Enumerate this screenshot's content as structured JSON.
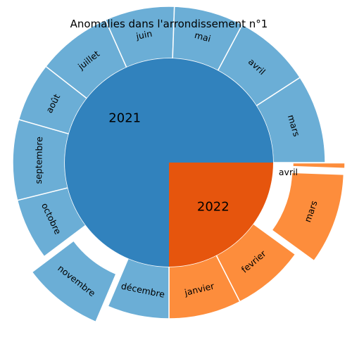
{
  "chart_data": {
    "type": "sunburst",
    "title": "Anomalies dans l'arrondissement n°1",
    "start_angle_deg": 0,
    "direction": "clockwise",
    "inner": [
      {
        "name": "2022",
        "value": 9,
        "color": "#e6550d"
      },
      {
        "name": "2021",
        "value": 27,
        "color": "#3182bd"
      }
    ],
    "outer": [
      {
        "name": "avril",
        "year": "2022",
        "value": 0.2,
        "exploded": true,
        "color": "#fd8d3c"
      },
      {
        "name": "mars",
        "year": "2022",
        "value": 3.4,
        "exploded": true,
        "color": "#fd8d3c"
      },
      {
        "name": "fevrier",
        "year": "2022",
        "value": 2.7,
        "exploded": false,
        "color": "#fd8d3c"
      },
      {
        "name": "janvier",
        "year": "2022",
        "value": 2.7,
        "exploded": false,
        "color": "#fd8d3c"
      },
      {
        "name": "décembre",
        "year": "2021",
        "value": 2.3,
        "exploded": false,
        "color": "#6baed6"
      },
      {
        "name": "novembre",
        "year": "2021",
        "value": 3.0,
        "exploded": true,
        "color": "#6baed6"
      },
      {
        "name": "octobre",
        "year": "2021",
        "value": 2.3,
        "exploded": false,
        "color": "#6baed6"
      },
      {
        "name": "septembre",
        "year": "2021",
        "value": 3.0,
        "exploded": false,
        "color": "#6baed6"
      },
      {
        "name": "août",
        "year": "2021",
        "value": 2.2,
        "exploded": false,
        "color": "#6baed6"
      },
      {
        "name": "juillet",
        "year": "2021",
        "value": 2.8,
        "exploded": false,
        "color": "#6baed6"
      },
      {
        "name": "juin",
        "year": "2021",
        "value": 2.6,
        "exploded": false,
        "color": "#6baed6"
      },
      {
        "name": "mai",
        "year": "2021",
        "value": 2.6,
        "exploded": false,
        "color": "#6baed6"
      },
      {
        "name": "avril",
        "year": "2021",
        "value": 2.9,
        "exploded": false,
        "color": "#6baed6"
      },
      {
        "name": "mars",
        "year": "2021",
        "value": 3.3,
        "exploded": false,
        "color": "#6baed6"
      }
    ]
  }
}
